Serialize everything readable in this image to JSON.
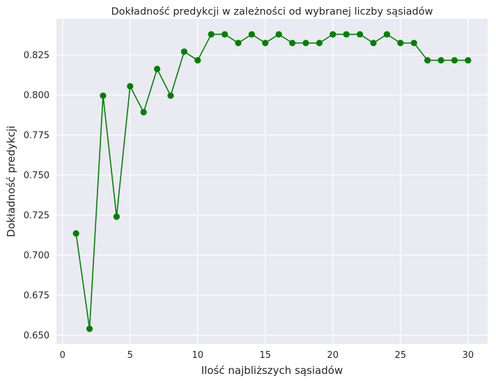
{
  "chart_data": {
    "type": "line",
    "title": "Dokładność predykcji w zależności od wybranej liczby sąsiadów",
    "xlabel": "Ilość najbliższych sąsiadów",
    "ylabel": "Dokładność predykcji",
    "xlim": [
      -0.45,
      31.45
    ],
    "ylim": [
      0.6445,
      0.8475
    ],
    "xticks": [
      0,
      5,
      10,
      15,
      20,
      25,
      30
    ],
    "yticks": [
      0.65,
      0.675,
      0.7,
      0.725,
      0.75,
      0.775,
      0.8,
      0.825
    ],
    "xtick_labels": [
      "0",
      "5",
      "10",
      "15",
      "20",
      "25",
      "30"
    ],
    "ytick_labels": [
      "0.650",
      "0.675",
      "0.700",
      "0.725",
      "0.750",
      "0.775",
      "0.800",
      "0.825"
    ],
    "grid": true,
    "style": {
      "background": "#eaeaf2",
      "grid": "#ffffff",
      "line_color": "#008000",
      "marker": "circle"
    },
    "series": [
      {
        "x": [
          1,
          2,
          3,
          4,
          5,
          6,
          7,
          8,
          9,
          10,
          11,
          12,
          13,
          14,
          15,
          16,
          17,
          18,
          19,
          20,
          21,
          22,
          23,
          24,
          25,
          26,
          27,
          28,
          29,
          30
        ],
        "values": [
          0.7135,
          0.654,
          0.7995,
          0.724,
          0.8054,
          0.7892,
          0.8162,
          0.7995,
          0.827,
          0.8216,
          0.8378,
          0.8378,
          0.8324,
          0.8378,
          0.8324,
          0.8378,
          0.8324,
          0.8324,
          0.8324,
          0.8378,
          0.8378,
          0.8378,
          0.8324,
          0.8378,
          0.8324,
          0.8324,
          0.8216,
          0.8216,
          0.8216,
          0.8216
        ]
      }
    ]
  }
}
